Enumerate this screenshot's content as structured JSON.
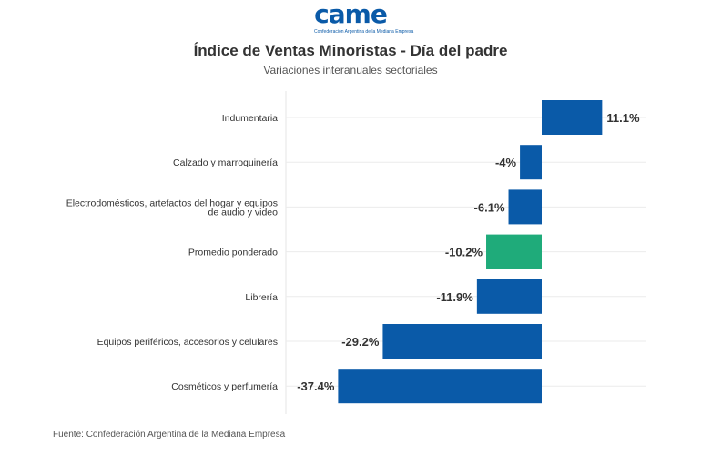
{
  "logo": {
    "text": "came",
    "tagline": "Confederación Argentina de la Mediana Empresa"
  },
  "chart_data": {
    "type": "bar",
    "orientation": "horizontal",
    "title": "Índice de Ventas Minoristas - Día del padre",
    "subtitle": "Variaciones interanuales sectoriales",
    "categories": [
      "Indumentaria",
      "Calzado y marroquinería",
      "Electrodomésticos, artefactos del hogar y equipos de audio y video",
      "Promedio ponderado",
      "Librería",
      "Equipos periféricos, accesorios y celulares",
      "Cosméticos y perfumería"
    ],
    "values": [
      11.1,
      -4,
      -6.1,
      -10.2,
      -11.9,
      -29.2,
      -37.4
    ],
    "data_labels": [
      "11.1%",
      "-4%",
      "-6.1%",
      "-10.2%",
      "-11.9%",
      "-29.2%",
      "-37.4%"
    ],
    "colors": [
      "#0a5aa8",
      "#0a5aa8",
      "#0a5aa8",
      "#1fab7a",
      "#0a5aa8",
      "#0a5aa8",
      "#0a5aa8"
    ],
    "grid": true,
    "value_axis_labels": false,
    "xlim": [
      -47,
      19
    ]
  },
  "source": "Fuente: Confederación Argentina de la Mediana Empresa"
}
